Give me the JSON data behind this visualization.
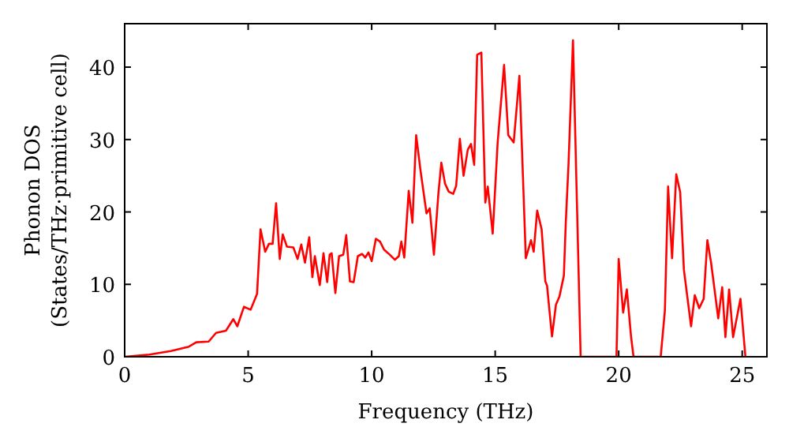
{
  "chart_data": {
    "type": "line",
    "xlabel": "Frequency (THz)",
    "ylabel": "Phonon DOS\n(States/THz·primitive cell)",
    "xlim": [
      0,
      26
    ],
    "ylim": [
      0,
      46
    ],
    "xticks": [
      0,
      5,
      10,
      15,
      20,
      25
    ],
    "yticks": [
      0,
      10,
      20,
      30,
      40
    ],
    "grid": false,
    "line_style": "solid",
    "series": [
      {
        "color": "#ff0000",
        "x": [
          0,
          1.0,
          1.87,
          2.6,
          2.9,
          3.4,
          3.7,
          4.1,
          4.4,
          4.56,
          4.83,
          5.1,
          5.36,
          5.5,
          5.69,
          5.84,
          5.99,
          6.13,
          6.28,
          6.4,
          6.57,
          6.83,
          7.0,
          7.15,
          7.3,
          7.47,
          7.6,
          7.7,
          7.9,
          8.05,
          8.2,
          8.3,
          8.38,
          8.53,
          8.68,
          8.85,
          8.97,
          9.12,
          9.27,
          9.44,
          9.61,
          9.74,
          9.87,
          10.0,
          10.17,
          10.34,
          10.5,
          10.73,
          10.94,
          11.1,
          11.2,
          11.32,
          11.5,
          11.65,
          11.8,
          11.97,
          12.22,
          12.35,
          12.52,
          12.7,
          12.82,
          12.97,
          13.12,
          13.3,
          13.42,
          13.57,
          13.72,
          13.89,
          14.02,
          14.15,
          14.27,
          14.44,
          14.6,
          14.7,
          14.9,
          15.1,
          15.36,
          15.53,
          15.75,
          15.98,
          16.24,
          16.45,
          16.56,
          16.7,
          16.88,
          17.03,
          17.1,
          17.3,
          17.46,
          17.6,
          17.78,
          17.86,
          17.97,
          18.15,
          18.46,
          19.91,
          20.0,
          20.18,
          20.33,
          20.5,
          20.6,
          21.7,
          21.87,
          22.0,
          22.16,
          22.33,
          22.49,
          22.64,
          22.93,
          23.08,
          23.26,
          23.44,
          23.59,
          23.74,
          24.03,
          24.19,
          24.32,
          24.47,
          24.63,
          24.93,
          25.13
        ],
        "values": [
          0,
          0.3,
          0.8,
          1.4,
          2.0,
          2.1,
          3.3,
          3.6,
          5.2,
          4.2,
          6.9,
          6.5,
          8.7,
          17.6,
          14.5,
          15.6,
          15.6,
          21.2,
          13.5,
          16.9,
          15.2,
          15.1,
          13.5,
          15.5,
          13,
          16.5,
          11,
          13.9,
          9.9,
          14.3,
          10.3,
          14.1,
          14.3,
          8.8,
          13.9,
          14.1,
          16.8,
          10.4,
          10.3,
          13.9,
          14.2,
          13.7,
          14.4,
          13.2,
          16.3,
          15.9,
          14.8,
          14.1,
          13.4,
          13.9,
          15.9,
          13.7,
          22.9,
          18.5,
          30.6,
          25.9,
          19.8,
          20.5,
          14.1,
          22.5,
          26.8,
          23.9,
          22.8,
          22.5,
          23.6,
          30.1,
          25,
          28.6,
          29.4,
          26.5,
          41.7,
          42,
          21.3,
          23.5,
          17,
          29.6,
          40.3,
          30.6,
          29.6,
          38.8,
          13.6,
          16.1,
          14.5,
          20.2,
          17.6,
          10.4,
          9.8,
          2.8,
          7.2,
          8.3,
          11.2,
          18.7,
          26.7,
          43.7,
          0,
          0,
          13.5,
          6.1,
          9.3,
          2.8,
          0,
          0,
          6.4,
          23.5,
          13.6,
          25.2,
          22.7,
          12,
          4.2,
          8.5,
          6.7,
          8,
          16.1,
          13,
          5.3,
          9.6,
          2.7,
          9.3,
          2.7,
          8,
          0
        ]
      }
    ]
  }
}
